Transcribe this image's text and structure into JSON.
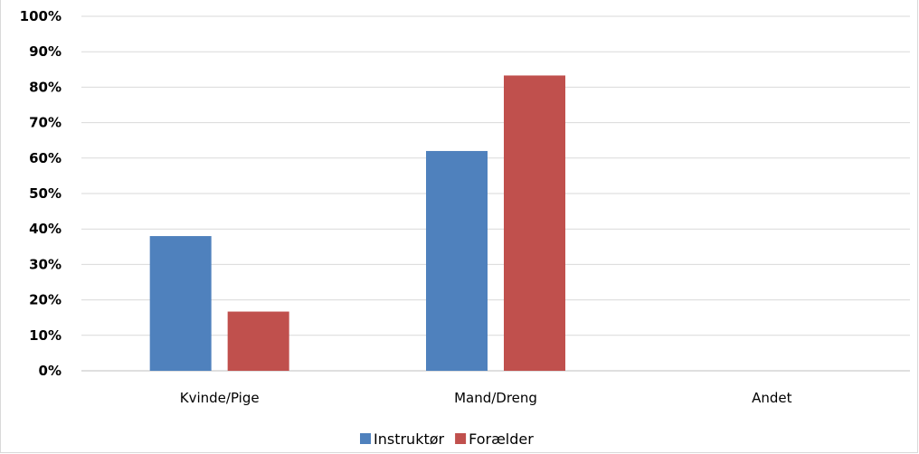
{
  "chart_data": {
    "type": "bar",
    "categories": [
      "Kvinde/Pige",
      "Mand/Dreng",
      "Andet"
    ],
    "series": [
      {
        "name": "Instruktør",
        "values": [
          38,
          62,
          0
        ],
        "color": "#4f81bd"
      },
      {
        "name": "Forælder",
        "values": [
          16.7,
          83.3,
          0
        ],
        "color": "#c0504d"
      }
    ],
    "yticks": [
      "0%",
      "10%",
      "20%",
      "30%",
      "40%",
      "50%",
      "60%",
      "70%",
      "80%",
      "90%",
      "100%"
    ],
    "ylim": [
      0,
      100
    ],
    "grid": true,
    "legend": "bottom"
  }
}
